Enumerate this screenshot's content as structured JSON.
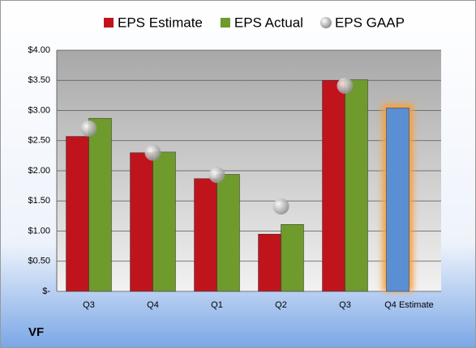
{
  "chart_data": {
    "type": "bar",
    "categories": [
      "Q3",
      "Q4",
      "Q1",
      "Q2",
      "Q3",
      "Q4 Estimate"
    ],
    "series": [
      {
        "name": "EPS Estimate",
        "color": "#c0141c",
        "values": [
          2.57,
          2.3,
          1.87,
          0.95,
          3.5,
          null
        ]
      },
      {
        "name": "EPS Actual",
        "color": "#6f9a2c",
        "values": [
          2.87,
          2.31,
          1.94,
          1.11,
          3.51,
          null
        ]
      },
      {
        "name": "EPS GAAP",
        "color": "#b0b0b0",
        "marker": "circle",
        "values": [
          2.7,
          2.3,
          1.93,
          1.41,
          3.41,
          null
        ]
      }
    ],
    "forecast_values": [
      null,
      null,
      null,
      null,
      null,
      3.04
    ],
    "forecast_color": "#5b8fd4",
    "ylim": [
      0,
      4
    ],
    "yticks": [
      {
        "value": 0,
        "label": "$-"
      },
      {
        "value": 0.5,
        "label": "$0.50"
      },
      {
        "value": 1,
        "label": "$1.00"
      },
      {
        "value": 1.5,
        "label": "$1.50"
      },
      {
        "value": 2,
        "label": "$2.00"
      },
      {
        "value": 2.5,
        "label": "$2.50"
      },
      {
        "value": 3,
        "label": "$3.00"
      },
      {
        "value": 3.5,
        "label": "$3.50"
      },
      {
        "value": 4,
        "label": "$4.00"
      }
    ],
    "grid": true,
    "legend": "top",
    "footnote": "VF"
  }
}
